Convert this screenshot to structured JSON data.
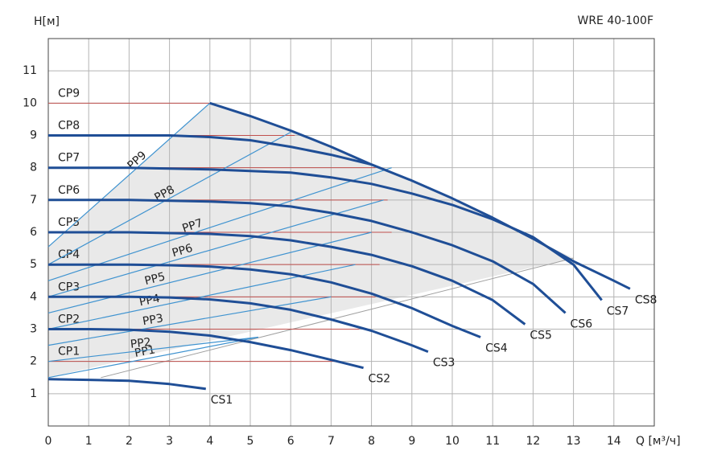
{
  "chart_data": {
    "type": "line",
    "title": "WRE 40-100F",
    "y_label": "H[м]",
    "x_label": "Q [м³/ч]",
    "xlim": [
      0,
      15
    ],
    "ylim": [
      0,
      12
    ],
    "xticks": [
      0,
      1,
      2,
      3,
      4,
      5,
      6,
      7,
      8,
      9,
      10,
      11,
      12,
      13,
      14
    ],
    "yticks": [
      1,
      2,
      3,
      4,
      5,
      6,
      7,
      8,
      9,
      10,
      11
    ],
    "grid": true,
    "grid_color": "#b4b4b4",
    "region": {
      "color": "#e9e9e9",
      "x": [
        0,
        13,
        12,
        11,
        10,
        9,
        8,
        7,
        6,
        5,
        4,
        0
      ],
      "values": [
        1.5,
        5.2,
        5.8,
        6.45,
        7.05,
        7.6,
        8.1,
        8.65,
        9.15,
        9.6,
        10,
        5.55
      ]
    },
    "boundary": {
      "color": "#a0a0a0",
      "x": [
        1.3,
        13
      ],
      "values": [
        1.5,
        5.2
      ]
    },
    "cp_lines": [
      {
        "name": "CP1",
        "color": "#c0504d",
        "value": 2,
        "x_end": 7.2
      },
      {
        "name": "CP2",
        "color": "#c0504d",
        "value": 3,
        "x_end": 7.7
      },
      {
        "name": "CP3",
        "color": "#c0504d",
        "value": 4,
        "x_end": 8.1
      },
      {
        "name": "CP4",
        "color": "#c0504d",
        "value": 5,
        "x_end": 8.2
      },
      {
        "name": "CP5",
        "color": "#c0504d",
        "value": 6,
        "x_end": 8.5
      },
      {
        "name": "CP6",
        "color": "#c0504d",
        "value": 7,
        "x_end": 8.4
      },
      {
        "name": "CP7",
        "color": "#c0504d",
        "value": 8,
        "x_end": 8.1
      },
      {
        "name": "CP8",
        "color": "#c0504d",
        "value": 9,
        "x_end": 6.1
      },
      {
        "name": "CP9",
        "color": "#c0504d",
        "value": 10,
        "x_end": 4
      }
    ],
    "pp_lines": [
      {
        "name": "PP1",
        "color": "#3f93d0",
        "x": [
          0,
          5.2
        ],
        "values": [
          1.5,
          2.75
        ]
      },
      {
        "name": "PP2",
        "color": "#3f93d0",
        "x": [
          0,
          5.2
        ],
        "values": [
          2,
          2.75
        ]
      },
      {
        "name": "PP3",
        "color": "#3f93d0",
        "x": [
          0,
          7
        ],
        "values": [
          2.5,
          4
        ]
      },
      {
        "name": "PP4",
        "color": "#3f93d0",
        "x": [
          0,
          7.6
        ],
        "values": [
          3,
          5
        ]
      },
      {
        "name": "PP5",
        "color": "#3f93d0",
        "x": [
          0,
          8
        ],
        "values": [
          3.5,
          6
        ]
      },
      {
        "name": "PP6",
        "color": "#3f93d0",
        "x": [
          0,
          8.3
        ],
        "values": [
          4,
          7
        ]
      },
      {
        "name": "PP7",
        "color": "#3f93d0",
        "x": [
          0,
          8.5
        ],
        "values": [
          4.5,
          8
        ]
      },
      {
        "name": "PP8",
        "color": "#3f93d0",
        "x": [
          0,
          6
        ],
        "values": [
          5,
          9.1
        ]
      },
      {
        "name": "PP9",
        "color": "#3f93d0",
        "x": [
          0,
          4
        ],
        "values": [
          5.55,
          10
        ]
      }
    ],
    "series": [
      {
        "name": "CS1",
        "color": "#1f4e96",
        "x": [
          0,
          1,
          2,
          3,
          3.9
        ],
        "values": [
          1.45,
          1.43,
          1.4,
          1.3,
          1.15
        ]
      },
      {
        "name": "CS2",
        "color": "#1f4e96",
        "x": [
          0,
          1,
          2,
          3,
          4,
          5,
          6,
          7,
          7.8
        ],
        "values": [
          3,
          3,
          2.98,
          2.92,
          2.8,
          2.6,
          2.35,
          2.05,
          1.8
        ]
      },
      {
        "name": "CS3",
        "color": "#1f4e96",
        "x": [
          0,
          2,
          3,
          4,
          5,
          6,
          7,
          8,
          9,
          9.4
        ],
        "values": [
          4,
          4,
          3.98,
          3.92,
          3.8,
          3.6,
          3.3,
          2.95,
          2.5,
          2.3
        ]
      },
      {
        "name": "CS4",
        "color": "#1f4e96",
        "x": [
          0,
          2,
          3,
          4,
          5,
          6,
          7,
          8,
          9,
          10,
          10.7
        ],
        "values": [
          5,
          5,
          4.98,
          4.94,
          4.85,
          4.7,
          4.45,
          4.1,
          3.65,
          3.1,
          2.75
        ]
      },
      {
        "name": "CS5",
        "color": "#1f4e96",
        "x": [
          0,
          2,
          4,
          5,
          6,
          7,
          8,
          9,
          10,
          11,
          11.8
        ],
        "values": [
          6,
          6,
          5.95,
          5.88,
          5.75,
          5.55,
          5.3,
          4.95,
          4.5,
          3.9,
          3.15
        ]
      },
      {
        "name": "CS6",
        "color": "#1f4e96",
        "x": [
          0,
          2,
          4,
          5,
          6,
          7,
          8,
          9,
          10,
          11,
          12,
          12.8
        ],
        "values": [
          7,
          7,
          6.95,
          6.9,
          6.8,
          6.6,
          6.35,
          6,
          5.6,
          5.1,
          4.4,
          3.5
        ]
      },
      {
        "name": "CS7",
        "color": "#1f4e96",
        "x": [
          0,
          2,
          4,
          5,
          6,
          7,
          8,
          9,
          10,
          11,
          12,
          13,
          13.7
        ],
        "values": [
          8,
          8,
          7.95,
          7.9,
          7.85,
          7.7,
          7.5,
          7.2,
          6.85,
          6.4,
          5.85,
          5,
          3.9
        ]
      },
      {
        "name": "CS8",
        "color": "#1f4e96",
        "x": [
          0,
          2,
          3,
          4,
          5,
          6,
          7,
          8,
          null,
          4,
          5,
          6,
          7,
          8,
          9,
          10,
          11,
          12,
          13,
          14,
          14.4
        ],
        "values": [
          9,
          9,
          9,
          8.95,
          8.85,
          8.65,
          8.4,
          8.1,
          null,
          10,
          9.6,
          9.15,
          8.65,
          8.1,
          7.6,
          7.05,
          6.45,
          5.8,
          5.1,
          4.5,
          4.25
        ]
      }
    ]
  }
}
